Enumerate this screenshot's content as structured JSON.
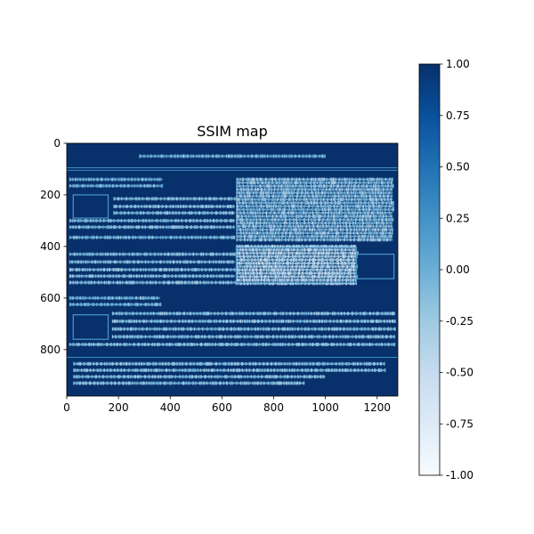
{
  "chart_data": {
    "type": "heatmap",
    "title": "SSIM map",
    "xlabel": "",
    "ylabel": "",
    "x_ticks": [
      0,
      200,
      400,
      600,
      800,
      1000,
      1200
    ],
    "y_ticks": [
      0,
      200,
      400,
      600,
      800
    ],
    "xlim": [
      0,
      1280
    ],
    "ylim": [
      980,
      0
    ],
    "colormap": "Blues",
    "background_value": 1.0,
    "colorbar": {
      "min": -1.0,
      "max": 1.0,
      "ticks": [
        "1.00",
        "0.75",
        "0.50",
        "0.25",
        "0.00",
        "-0.25",
        "-0.50",
        "-0.75",
        "-1.00"
      ],
      "tick_values": [
        1.0,
        0.75,
        0.5,
        0.25,
        0.0,
        -0.25,
        -0.5,
        -0.75,
        -1.0
      ]
    },
    "colors": {
      "high": "#08306b",
      "mid_high": "#2171b5",
      "mid": "#6baed6",
      "low": "#c6dbef",
      "lowest": "#f7fbff"
    },
    "features": [
      {
        "kind": "text-line",
        "x": [
          280,
          1000
        ],
        "y": 50,
        "value": 0.1
      },
      {
        "kind": "rule",
        "x": [
          0,
          1280
        ],
        "y": 95,
        "value": 0.3
      },
      {
        "kind": "rule",
        "x": [
          0,
          1280
        ],
        "y": 105,
        "value": 0.3
      },
      {
        "kind": "text-line",
        "x": [
          10,
          370
        ],
        "y": 140,
        "value": 0.1
      },
      {
        "kind": "text-line",
        "x": [
          10,
          370
        ],
        "y": 165,
        "value": 0.1
      },
      {
        "kind": "box",
        "x": [
          25,
          160
        ],
        "y": [
          200,
          290
        ],
        "value": 0.2
      },
      {
        "kind": "text-line",
        "x": [
          180,
          650
        ],
        "y": 215,
        "value": 0.0
      },
      {
        "kind": "text-line",
        "x": [
          180,
          650
        ],
        "y": 245,
        "value": 0.0
      },
      {
        "kind": "text-line",
        "x": [
          180,
          650
        ],
        "y": 270,
        "value": 0.0
      },
      {
        "kind": "text-line",
        "x": [
          10,
          650
        ],
        "y": 300,
        "value": 0.0
      },
      {
        "kind": "text-line",
        "x": [
          10,
          650
        ],
        "y": 325,
        "value": 0.0
      },
      {
        "kind": "text-line",
        "x": [
          10,
          650
        ],
        "y": 365,
        "value": 0.1
      },
      {
        "kind": "text-line",
        "x": [
          10,
          650
        ],
        "y": 430,
        "value": 0.0
      },
      {
        "kind": "text-line",
        "x": [
          10,
          650
        ],
        "y": 460,
        "value": 0.0
      },
      {
        "kind": "text-line",
        "x": [
          10,
          650
        ],
        "y": 490,
        "value": 0.0
      },
      {
        "kind": "text-line",
        "x": [
          10,
          650
        ],
        "y": 515,
        "value": 0.0
      },
      {
        "kind": "text-line",
        "x": [
          10,
          650
        ],
        "y": 540,
        "value": 0.0
      },
      {
        "kind": "text-block",
        "x": [
          655,
          1260
        ],
        "y": [
          140,
          380
        ],
        "value": 0.0
      },
      {
        "kind": "text-block",
        "x": [
          655,
          1120
        ],
        "y": [
          400,
          555
        ],
        "value": -0.2
      },
      {
        "kind": "box",
        "x": [
          655,
          1120
        ],
        "y": [
          405,
          540
        ],
        "value": 0.2
      },
      {
        "kind": "box",
        "x": [
          1120,
          1265
        ],
        "y": [
          430,
          525
        ],
        "value": 0.2
      },
      {
        "kind": "text-line",
        "x": [
          10,
          360
        ],
        "y": 600,
        "value": 0.1
      },
      {
        "kind": "text-line",
        "x": [
          10,
          360
        ],
        "y": 625,
        "value": 0.1
      },
      {
        "kind": "box",
        "x": [
          25,
          160
        ],
        "y": [
          665,
          760
        ],
        "value": 0.2
      },
      {
        "kind": "text-line",
        "x": [
          175,
          1270
        ],
        "y": 660,
        "value": 0.0
      },
      {
        "kind": "text-line",
        "x": [
          175,
          1270
        ],
        "y": 690,
        "value": 0.0
      },
      {
        "kind": "text-line",
        "x": [
          175,
          1270
        ],
        "y": 720,
        "value": 0.0
      },
      {
        "kind": "text-line",
        "x": [
          175,
          1270
        ],
        "y": 750,
        "value": 0.0
      },
      {
        "kind": "text-line",
        "x": [
          10,
          1270
        ],
        "y": 780,
        "value": 0.0
      },
      {
        "kind": "rule",
        "x": [
          0,
          1280
        ],
        "y": 830,
        "value": 0.3
      },
      {
        "kind": "text-line",
        "x": [
          25,
          1230
        ],
        "y": 855,
        "value": 0.0
      },
      {
        "kind": "text-line",
        "x": [
          25,
          1230
        ],
        "y": 880,
        "value": 0.0
      },
      {
        "kind": "text-line",
        "x": [
          25,
          1000
        ],
        "y": 905,
        "value": 0.0
      },
      {
        "kind": "text-line",
        "x": [
          25,
          920
        ],
        "y": 930,
        "value": 0.0
      }
    ]
  }
}
